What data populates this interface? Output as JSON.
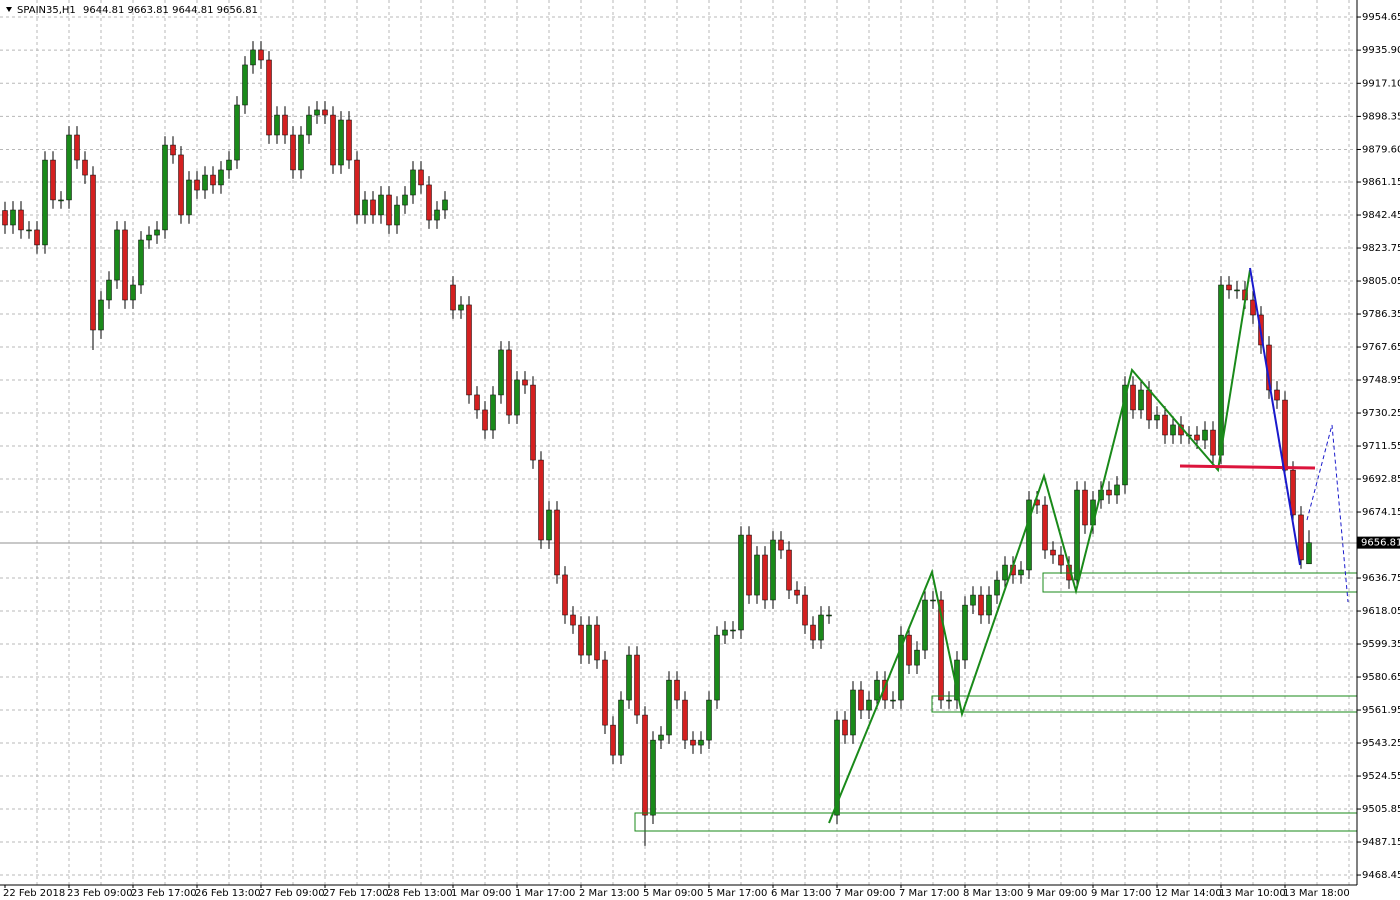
{
  "chart_data": {
    "type": "candlestick",
    "title": "SPAIN35,H1",
    "bull_color": "#1a8a1a",
    "bear_color": "#d42020",
    "grid": true,
    "ylim": [
      9462.8,
      9964.3
    ],
    "yticks": [
      9954.65,
      {
        "value": 9935.9,
        "label": "9935.90"
      },
      {
        "value": 9917.1,
        "label": "9917.10"
      },
      9898.35,
      {
        "value": 9879.6,
        "label": "9879.60"
      },
      9861.15,
      9842.45,
      9823.75,
      9805.05,
      9786.35,
      9767.65,
      9748.95,
      9730.25,
      9711.55,
      9692.85,
      9674.15,
      9636.75,
      9618.05,
      9599.35,
      9580.65,
      9561.95,
      9543.25,
      9524.55,
      9505.85,
      9487.15,
      9468.45
    ],
    "categories": [
      "22 Feb 2018",
      null,
      null,
      null,
      null,
      null,
      null,
      null,
      "23 Feb 09:00",
      null,
      null,
      null,
      null,
      null,
      null,
      null,
      "23 Feb 17:00",
      null,
      null,
      null,
      null,
      null,
      null,
      null,
      "26 Feb 13:00",
      null,
      null,
      null,
      null,
      null,
      null,
      null,
      "27 Feb 09:00",
      null,
      null,
      null,
      null,
      null,
      null,
      null,
      "27 Feb 17:00",
      null,
      null,
      null,
      null,
      null,
      null,
      null,
      "28 Feb 13:00",
      null,
      null,
      null,
      null,
      null,
      null,
      null,
      "1 Mar 09:00",
      null,
      null,
      null,
      null,
      null,
      null,
      null,
      "1 Mar 17:00",
      null,
      null,
      null,
      null,
      null,
      null,
      null,
      "2 Mar 13:00",
      null,
      null,
      null,
      null,
      null,
      null,
      null,
      "5 Mar 09:00",
      null,
      null,
      null,
      null,
      null,
      null,
      null,
      "5 Mar 17:00",
      null,
      null,
      null,
      null,
      null,
      null,
      null,
      "6 Mar 13:00",
      null,
      null,
      null,
      null,
      null,
      null,
      null,
      "7 Mar 09:00",
      null,
      null,
      null,
      null,
      null,
      null,
      null,
      "7 Mar 17:00",
      null,
      null,
      null,
      null,
      null,
      null,
      null,
      "8 Mar 13:00",
      null,
      null,
      null,
      null,
      null,
      null,
      null,
      "9 Mar 09:00",
      null,
      null,
      null,
      null,
      null,
      null,
      null,
      "9 Mar 17:00",
      null,
      null,
      null,
      null,
      null,
      null,
      null,
      "12 Mar 14:00",
      null,
      null,
      null,
      null,
      null,
      null,
      null,
      "13 Mar 10:00",
      null,
      null,
      null,
      null,
      null,
      null,
      null,
      "13 Mar 18:00",
      null,
      null,
      null
    ],
    "open": [
      9845.0,
      9836.8,
      9845.3,
      9834.0,
      9834.0,
      9825.5,
      9873.6,
      9851.0,
      9851.0,
      9887.8,
      9873.6,
      9865.1,
      9777.3,
      9794.3,
      9805.6,
      9834.0,
      9794.3,
      9802.8,
      9828.3,
      9831.1,
      9834.0,
      9882.1,
      9876.5,
      9842.5,
      9862.3,
      9856.6,
      9865.1,
      9859.5,
      9868.0,
      9873.6,
      9904.8,
      9927.5,
      9936.0,
      9930.3,
      9887.8,
      9899.1,
      9887.8,
      9868.0,
      9887.8,
      9899.1,
      9902.0,
      9899.1,
      9870.8,
      9896.3,
      9873.6,
      9842.5,
      9851.0,
      9842.5,
      9853.8,
      9836.8,
      9848.1,
      9853.8,
      9868.0,
      9859.5,
      9839.6,
      9845.3,
      9802.8,
      9788.6,
      9791.5,
      9740.5,
      9732.0,
      9720.6,
      9740.5,
      9766.0,
      9729.1,
      9749.0,
      9746.1,
      9703.6,
      9658.3,
      9675.3,
      9638.5,
      9615.8,
      9610.1,
      9593.1,
      9610.1,
      9590.3,
      9553.4,
      9536.4,
      9567.6,
      9593.1,
      9559.1,
      9502.4,
      9544.9,
      9547.8,
      9578.9,
      9567.6,
      9544.9,
      9542.1,
      9544.9,
      9567.6,
      9604.4,
      9607.3,
      9607.3,
      9661.1,
      9627.1,
      9649.8,
      9624.3,
      9658.3,
      9652.6,
      9629.9,
      9627.1,
      9610.1,
      9601.6,
      9615.8,
      9502.4,
      9556.3,
      9547.8,
      9573.3,
      9561.9,
      9567.6,
      9578.9,
      9567.6,
      9567.6,
      9604.4,
      9587.4,
      9595.9,
      9624.3,
      9624.3,
      9567.6,
      9567.6,
      9590.3,
      9621.4,
      9627.1,
      9615.8,
      9627.1,
      9635.6,
      9644.1,
      9638.5,
      9641.3,
      9681.0,
      9678.1,
      9652.6,
      9649.8,
      9644.1,
      9635.6,
      9686.6,
      9666.8,
      9681.0,
      9686.6,
      9683.8,
      9689.5,
      9746.1,
      9732.0,
      9743.3,
      9726.3,
      9729.1,
      9717.8,
      9723.5,
      9717.8,
      9717.8,
      9714.9,
      9720.6,
      9706.4,
      9802.8,
      9800.0,
      9800.0,
      9794.3,
      9785.8,
      9768.8,
      9743.3,
      9737.6,
      9697.9,
      9672.5,
      9644.81
    ],
    "high": [
      9850.0,
      9850.3,
      9850.3,
      9839.0,
      9839.0,
      9878.6,
      9878.6,
      9856.0,
      9892.8,
      9892.8,
      9878.6,
      9870.1,
      9799.3,
      9810.6,
      9839.0,
      9839.0,
      9807.8,
      9833.3,
      9836.1,
      9839.0,
      9887.1,
      9887.1,
      9881.5,
      9867.3,
      9867.3,
      9870.1,
      9870.1,
      9873.0,
      9878.6,
      9909.8,
      9932.5,
      9941.0,
      9941.0,
      9935.3,
      9904.1,
      9904.1,
      9892.8,
      9892.8,
      9904.1,
      9907.0,
      9907.0,
      9904.1,
      9901.3,
      9901.3,
      9878.6,
      9856.0,
      9856.0,
      9858.8,
      9858.8,
      9853.1,
      9858.8,
      9873.0,
      9873.0,
      9864.5,
      9850.3,
      9856.0,
      9807.8,
      9796.5,
      9796.5,
      9745.5,
      9737.0,
      9745.5,
      9771.0,
      9771.0,
      9754.0,
      9754.0,
      9751.1,
      9708.6,
      9680.3,
      9680.3,
      9643.5,
      9620.8,
      9615.1,
      9615.1,
      9615.1,
      9595.3,
      9558.4,
      9572.6,
      9598.1,
      9598.1,
      9564.1,
      9549.9,
      9552.8,
      9583.9,
      9583.9,
      9572.6,
      9549.9,
      9549.9,
      9572.6,
      9609.4,
      9612.3,
      9612.3,
      9666.1,
      9666.1,
      9654.8,
      9654.8,
      9663.3,
      9663.3,
      9657.6,
      9634.9,
      9632.1,
      9615.1,
      9620.8,
      9620.8,
      9561.3,
      9561.3,
      9578.3,
      9578.3,
      9572.6,
      9583.9,
      9583.9,
      9572.6,
      9609.4,
      9609.4,
      9600.9,
      9629.3,
      9629.3,
      9629.3,
      9572.6,
      9595.3,
      9626.4,
      9632.1,
      9632.1,
      9632.1,
      9640.6,
      9649.1,
      9649.1,
      9646.3,
      9686.0,
      9686.0,
      9683.1,
      9657.6,
      9654.8,
      9649.1,
      9691.6,
      9691.6,
      9686.0,
      9691.6,
      9691.6,
      9694.5,
      9751.1,
      9751.1,
      9748.3,
      9748.3,
      9734.1,
      9734.1,
      9728.5,
      9728.5,
      9722.8,
      9722.8,
      9725.6,
      9725.6,
      9807.8,
      9807.8,
      9805.0,
      9805.0,
      9799.3,
      9790.8,
      9773.8,
      9748.3,
      9742.6,
      9702.9,
      9677.5,
      9663.81
    ],
    "low": [
      9831.8,
      9831.8,
      9829.0,
      9829.0,
      9820.5,
      9820.5,
      9846.0,
      9846.0,
      9846.0,
      9868.6,
      9860.1,
      9766.0,
      9772.3,
      9789.3,
      9800.6,
      9789.3,
      9789.3,
      9797.8,
      9823.3,
      9826.1,
      9829.0,
      9871.5,
      9837.5,
      9837.5,
      9851.6,
      9851.6,
      9854.5,
      9854.5,
      9863.0,
      9868.6,
      9899.8,
      9922.5,
      9925.3,
      9882.8,
      9882.8,
      9882.8,
      9863.0,
      9863.0,
      9882.8,
      9894.1,
      9894.1,
      9865.8,
      9865.8,
      9868.6,
      9837.5,
      9837.5,
      9837.5,
      9837.5,
      9831.8,
      9831.8,
      9843.1,
      9848.8,
      9854.5,
      9834.6,
      9834.6,
      9840.3,
      9783.6,
      9783.6,
      9735.5,
      9727.0,
      9715.6,
      9715.6,
      9735.5,
      9724.1,
      9724.1,
      9741.1,
      9698.6,
      9653.3,
      9653.3,
      9633.5,
      9610.8,
      9605.1,
      9588.1,
      9588.1,
      9585.3,
      9548.4,
      9531.4,
      9531.4,
      9562.6,
      9554.1,
      9485.0,
      9497.4,
      9539.9,
      9542.8,
      9562.6,
      9539.9,
      9537.1,
      9537.1,
      9539.9,
      9562.6,
      9599.4,
      9602.3,
      9602.3,
      9622.1,
      9622.1,
      9619.3,
      9619.3,
      9647.6,
      9624.9,
      9622.1,
      9605.1,
      9596.6,
      9596.6,
      9610.8,
      9497.4,
      9542.8,
      9542.8,
      9556.9,
      9556.9,
      9562.6,
      9562.6,
      9562.6,
      9562.6,
      9582.4,
      9582.4,
      9590.9,
      9619.3,
      9562.6,
      9562.6,
      9562.6,
      9585.3,
      9616.4,
      9610.8,
      9610.8,
      9622.1,
      9630.6,
      9633.5,
      9633.5,
      9636.3,
      9673.1,
      9647.6,
      9644.8,
      9639.1,
      9630.6,
      9630.6,
      9661.8,
      9661.8,
      9676.0,
      9678.8,
      9678.8,
      9684.5,
      9727.0,
      9727.0,
      9721.3,
      9721.3,
      9712.8,
      9712.8,
      9712.8,
      9712.8,
      9709.9,
      9709.9,
      9701.4,
      9701.4,
      9795.0,
      9795.0,
      9789.3,
      9780.8,
      9763.8,
      9738.3,
      9732.6,
      9692.9,
      9667.5,
      9642.0,
      9644.81
    ],
    "close": [
      9836.8,
      9845.3,
      9834.0,
      9834.0,
      9825.5,
      9873.6,
      9851.0,
      9851.0,
      9887.8,
      9873.6,
      9865.1,
      9777.3,
      9794.3,
      9805.6,
      9834.0,
      9794.3,
      9802.8,
      9828.3,
      9831.1,
      9834.0,
      9882.1,
      9876.5,
      9842.5,
      9862.3,
      9856.6,
      9865.1,
      9859.5,
      9868.0,
      9873.6,
      9904.8,
      9927.5,
      9936.0,
      9930.3,
      9887.8,
      9899.1,
      9887.8,
      9868.0,
      9887.8,
      9899.1,
      9902.0,
      9899.1,
      9870.8,
      9896.3,
      9873.6,
      9842.5,
      9851.0,
      9842.5,
      9853.8,
      9836.8,
      9848.1,
      9853.8,
      9868.0,
      9859.5,
      9839.6,
      9845.3,
      9851.0,
      9788.6,
      9791.5,
      9740.5,
      9732.0,
      9720.6,
      9740.5,
      9766.0,
      9729.1,
      9749.0,
      9746.1,
      9703.6,
      9658.3,
      9675.3,
      9638.5,
      9615.8,
      9610.1,
      9593.1,
      9610.1,
      9590.3,
      9553.4,
      9536.4,
      9567.6,
      9593.1,
      9559.1,
      9502.4,
      9544.9,
      9547.8,
      9578.9,
      9567.6,
      9544.9,
      9542.1,
      9544.9,
      9567.6,
      9604.4,
      9607.3,
      9607.3,
      9661.1,
      9627.1,
      9649.8,
      9624.3,
      9658.3,
      9652.6,
      9629.9,
      9627.1,
      9610.1,
      9601.6,
      9615.8,
      9615.8,
      9556.3,
      9547.8,
      9573.3,
      9561.9,
      9567.6,
      9578.9,
      9567.6,
      9567.6,
      9604.4,
      9587.4,
      9595.9,
      9624.3,
      9624.3,
      9567.6,
      9567.6,
      9590.3,
      9621.4,
      9627.1,
      9615.8,
      9627.1,
      9635.6,
      9644.1,
      9638.5,
      9641.3,
      9681.0,
      9678.1,
      9652.6,
      9649.8,
      9644.1,
      9635.6,
      9686.6,
      9666.8,
      9681.0,
      9686.6,
      9683.8,
      9689.5,
      9746.1,
      9732.0,
      9743.3,
      9726.3,
      9729.1,
      9717.8,
      9723.5,
      9717.8,
      9717.8,
      9714.9,
      9720.6,
      9706.4,
      9802.8,
      9800.0,
      9800.0,
      9794.3,
      9785.8,
      9768.8,
      9743.3,
      9737.6,
      9697.9,
      9672.5,
      9647.0,
      9656.81
    ]
  }
}
